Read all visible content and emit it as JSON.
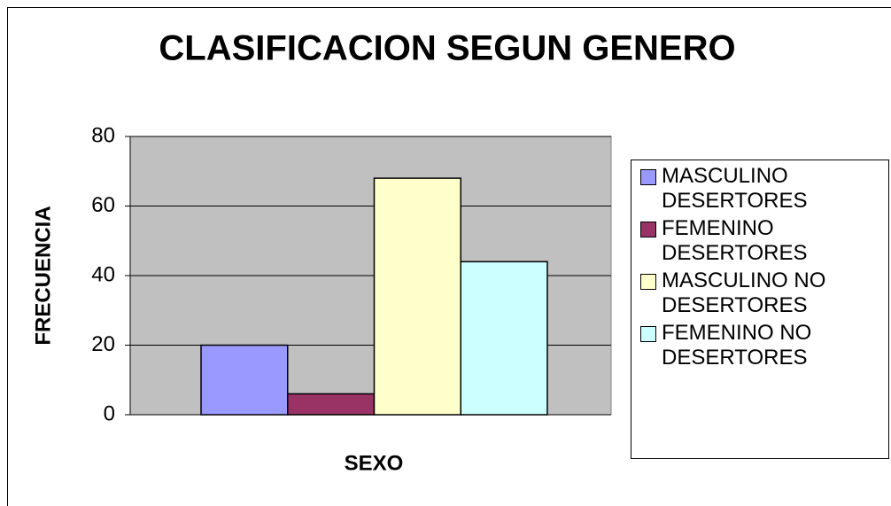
{
  "chart_data": {
    "type": "bar",
    "title": "CLASIFICACION SEGUN GENERO",
    "x_label": "SEXO",
    "y_label": "FRECUENCIA",
    "categories": [
      null
    ],
    "series": [
      {
        "name": "MASCULINO DESERTORES",
        "color": "#9999ff",
        "values": [
          20
        ]
      },
      {
        "name": "FEMENINO DESERTORES",
        "color": "#993366",
        "values": [
          6
        ]
      },
      {
        "name": "MASCULINO NO DESERTORES",
        "color": "#ffffcc",
        "values": [
          68
        ]
      },
      {
        "name": "FEMENINO NO DESERTORES",
        "color": "#ccffff",
        "values": [
          44
        ]
      }
    ],
    "ylim": [
      0,
      80
    ],
    "yticks": [
      0,
      20,
      40,
      60,
      80
    ],
    "grid": true,
    "legend": "right"
  }
}
